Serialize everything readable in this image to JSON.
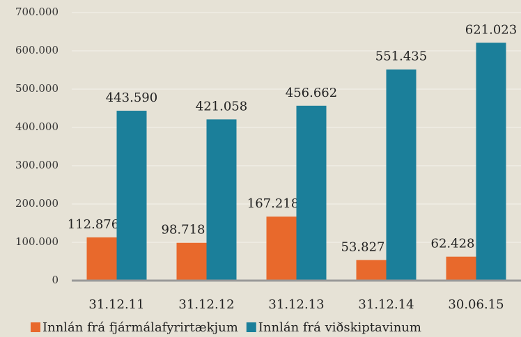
{
  "chart_data": {
    "type": "bar",
    "categories": [
      "31.12.11",
      "31.12.12",
      "31.12.13",
      "31.12.14",
      "30.06.15"
    ],
    "series": [
      {
        "name": "Innlán frá fjármálafyrirtækjum",
        "color": "#e8692c",
        "values": [
          112876,
          98718,
          167218,
          53827,
          62428
        ],
        "value_labels": [
          "112.876",
          "98.718",
          "167.218",
          "53.827",
          "62.428"
        ]
      },
      {
        "name": "Innlán frá viðskiptavinum",
        "color": "#1b7f9a",
        "values": [
          443590,
          421058,
          456662,
          551435,
          621023
        ],
        "value_labels": [
          "443.590",
          "421.058",
          "456.662",
          "551.435",
          "621.023"
        ]
      }
    ],
    "ylim": [
      0,
      700000
    ],
    "yticks": [
      0,
      {
        "value": 100000,
        "label": "100.000"
      },
      {
        "value": 200000,
        "label": "200.000"
      },
      {
        "value": 300000,
        "label": "300.000"
      },
      {
        "value": 400000,
        "label": "400.000"
      },
      {
        "value": 500000,
        "label": "500.000"
      },
      {
        "value": 600000,
        "label": "600.000"
      },
      {
        "value": 700000,
        "label": "700.000"
      }
    ],
    "grid": true,
    "legend": "bottom"
  }
}
